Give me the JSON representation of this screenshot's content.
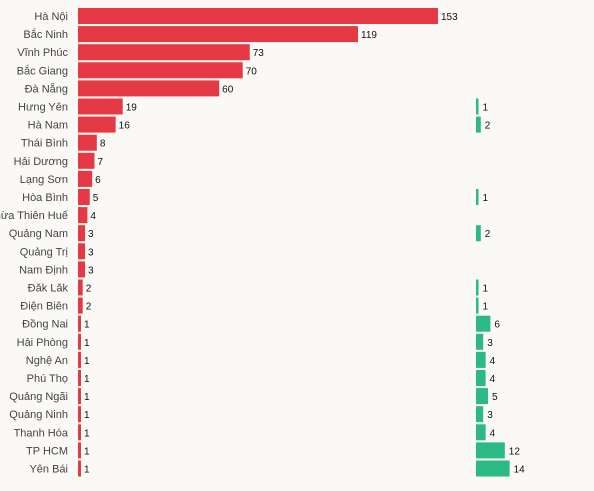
{
  "chart_data": {
    "type": "bar",
    "title": "",
    "xlabel": "",
    "ylabel": "",
    "categories": [
      "Hà Nội",
      "Bắc Ninh",
      "Vĩnh Phúc",
      "Bắc Giang",
      "Đà Nẵng",
      "Hưng Yên",
      "Hà Nam",
      "Thái Bình",
      "Hải Dương",
      "Lạng Sơn",
      "Hòa Bình",
      "Thừa Thiên Huế",
      "Quảng Nam",
      "Quảng Trị",
      "Nam Định",
      "Đăk Lăk",
      "Điện Biên",
      "Đồng Nai",
      "Hải Phòng",
      "Nghệ An",
      "Phú Thọ",
      "Quảng Ngãi",
      "Quảng Ninh",
      "Thanh Hóa",
      "TP HCM",
      "Yên Bái"
    ],
    "series": [
      {
        "color": "#e63946",
        "values": [
          153,
          119,
          73,
          70,
          60,
          19,
          16,
          8,
          7,
          6,
          5,
          4,
          3,
          3,
          3,
          2,
          2,
          1,
          1,
          1,
          1,
          1,
          1,
          1,
          1,
          1
        ]
      },
      {
        "color": "#2bb984",
        "values": [
          null,
          null,
          null,
          null,
          null,
          1,
          2,
          null,
          null,
          null,
          1,
          null,
          2,
          null,
          null,
          1,
          1,
          6,
          3,
          4,
          4,
          5,
          3,
          4,
          12,
          14
        ]
      }
    ]
  }
}
